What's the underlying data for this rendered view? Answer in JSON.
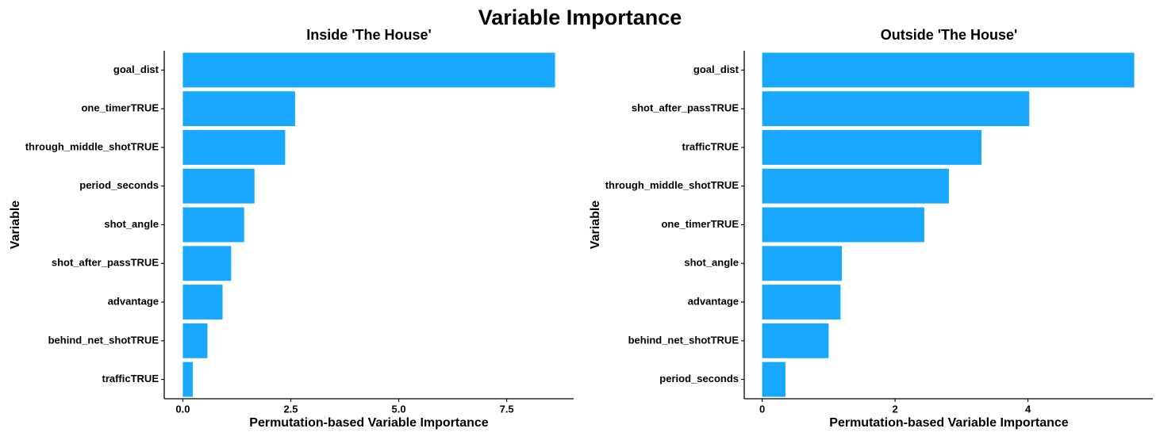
{
  "title": "Variable Importance",
  "bar_color": "#18a9ff",
  "chart_data": [
    {
      "type": "bar",
      "orientation": "horizontal",
      "title": "Inside 'The House'",
      "xlabel": "Permutation-based Variable Importance",
      "ylabel": "Variable",
      "categories": [
        "goal_dist",
        "one_timerTRUE",
        "through_middle_shotTRUE",
        "period_seconds",
        "shot_angle",
        "shot_after_passTRUE",
        "advantage",
        "behind_net_shotTRUE",
        "trafficTRUE"
      ],
      "values": [
        8.62,
        2.6,
        2.37,
        1.66,
        1.42,
        1.12,
        0.92,
        0.57,
        0.23
      ],
      "xlim": [
        -0.43,
        9.05
      ],
      "xticks": [
        0.0,
        2.5,
        5.0,
        7.5
      ],
      "xtick_labels": [
        "0.0",
        "2.5",
        "5.0",
        "7.5"
      ],
      "grid": false,
      "legend": "none"
    },
    {
      "type": "bar",
      "orientation": "horizontal",
      "title": "Outside 'The House'",
      "xlabel": "Permutation-based Variable Importance",
      "ylabel": "Variable",
      "categories": [
        "goal_dist",
        "shot_after_passTRUE",
        "trafficTRUE",
        "through_middle_shotTRUE",
        "one_timerTRUE",
        "shot_angle",
        "advantage",
        "behind_net_shotTRUE",
        "period_seconds"
      ],
      "values": [
        5.6,
        4.02,
        3.3,
        2.81,
        2.44,
        1.2,
        1.18,
        1.0,
        0.35
      ],
      "xlim": [
        -0.27,
        5.88
      ],
      "xticks": [
        0,
        2,
        4
      ],
      "xtick_labels": [
        "0",
        "2",
        "4"
      ],
      "grid": false,
      "legend": "none"
    }
  ]
}
